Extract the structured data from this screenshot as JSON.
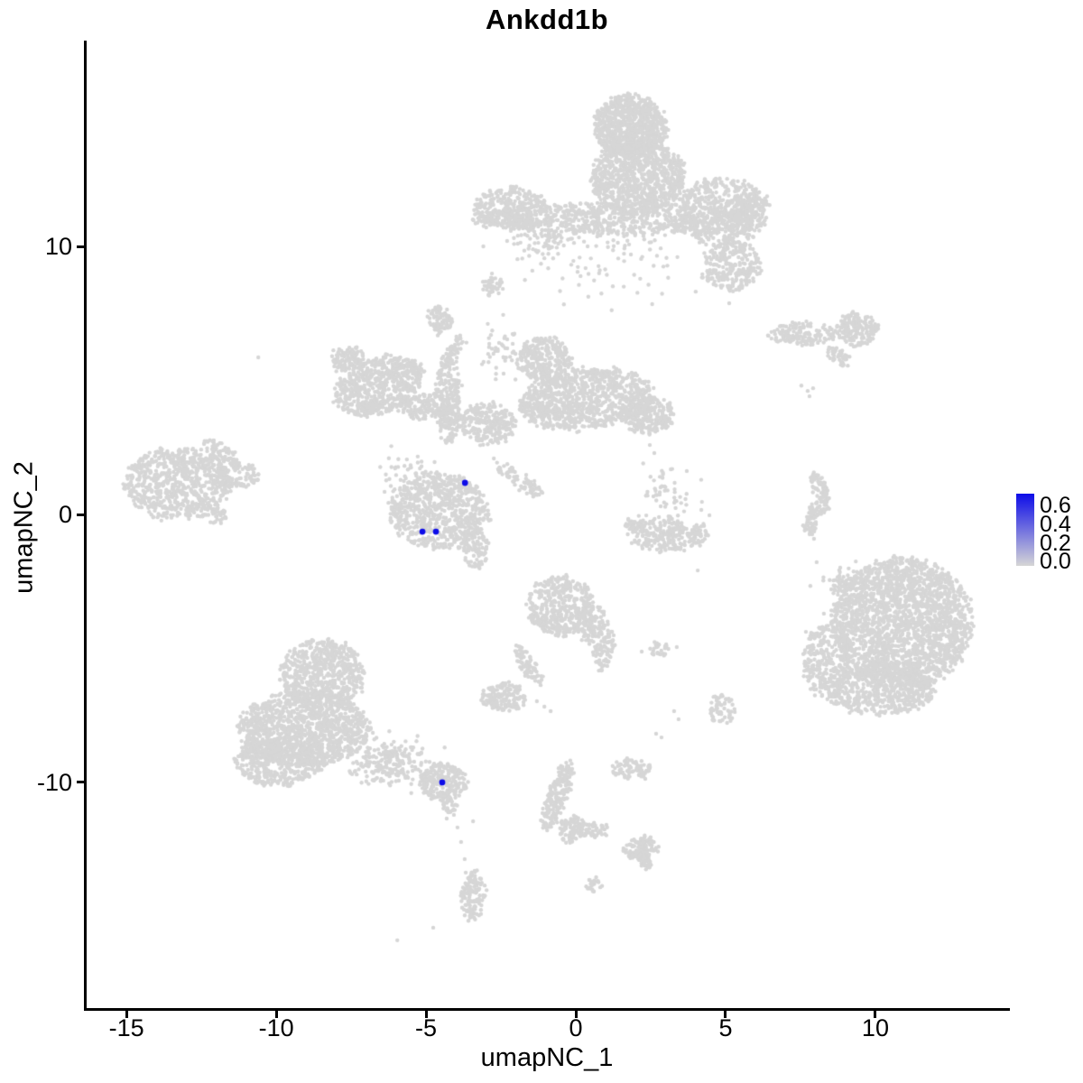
{
  "title": "Ankdd1b",
  "chart_data": {
    "type": "scatter",
    "title": "Ankdd1b",
    "xlabel": "umapNC_1",
    "ylabel": "umapNC_2",
    "xlim": [
      -16.36,
      14.46
    ],
    "ylim": [
      -18.42,
      17.58
    ],
    "x_ticks": [
      -15,
      -10,
      -5,
      0,
      5,
      10
    ],
    "y_ticks": [
      -10,
      0,
      10
    ],
    "grid": false,
    "legend": {
      "position": "right",
      "tick_values": [
        0.0,
        0.2,
        0.4,
        0.6
      ],
      "tick_labels": [
        "0.0",
        "0.2",
        "0.4",
        "0.6"
      ],
      "scale_min": -0.045,
      "scale_max": 0.73,
      "low_color": "#D6D6D6",
      "high_color": "#0D0CE8"
    },
    "background_cells": {
      "color": "#D6D6D6",
      "radius_px": 2.2,
      "blobs": [
        [
          1.81,
          14.48,
          1.2,
          1.18,
          0,
          900,
          "u"
        ],
        [
          2.08,
          12.56,
          1.57,
          1.41,
          0,
          1000,
          "u"
        ],
        [
          1.42,
          11.01,
          4.82,
          0.61,
          0,
          800,
          "u"
        ],
        [
          -2.2,
          11.45,
          1.2,
          0.74,
          0,
          260,
          "u"
        ],
        [
          4.88,
          11.28,
          1.45,
          1.28,
          0,
          520,
          "u"
        ],
        [
          5.87,
          11.62,
          0.54,
          0.47,
          0,
          70,
          "u"
        ],
        [
          5.18,
          9.26,
          0.96,
          0.94,
          0,
          260,
          "u"
        ],
        [
          1.27,
          9.43,
          2.71,
          1.35,
          0,
          90,
          "g"
        ],
        [
          -1.14,
          10.27,
          1.36,
          0.61,
          0,
          70,
          "g"
        ],
        [
          -2.77,
          8.52,
          0.3,
          0.37,
          -30,
          40,
          "u"
        ],
        [
          7.59,
          6.73,
          1.14,
          0.4,
          0,
          160,
          "u"
        ],
        [
          9.4,
          6.9,
          0.69,
          0.61,
          0,
          170,
          "u"
        ],
        [
          8.8,
          5.89,
          0.45,
          0.24,
          -35,
          40,
          "u"
        ],
        [
          -6.57,
          4.78,
          1.57,
          1.01,
          25,
          650,
          "u"
        ],
        [
          -7.62,
          5.79,
          0.54,
          0.44,
          0,
          110,
          "u"
        ],
        [
          -5.06,
          4.04,
          0.9,
          0.47,
          0,
          160,
          "u"
        ],
        [
          -4.25,
          4.38,
          0.42,
          1.68,
          0,
          260,
          "u"
        ],
        [
          -4.52,
          7.27,
          0.39,
          0.51,
          0,
          90,
          "u"
        ],
        [
          -4.07,
          6.13,
          0.18,
          0.61,
          -20,
          40,
          "u"
        ],
        [
          -2.95,
          3.37,
          0.96,
          0.74,
          0,
          260,
          "u"
        ],
        [
          -1.08,
          5.79,
          0.9,
          0.81,
          0,
          300,
          "u"
        ],
        [
          0.36,
          4.31,
          2.26,
          1.11,
          8,
          950,
          "u"
        ],
        [
          2.41,
          3.7,
          0.84,
          0.67,
          0,
          220,
          "u"
        ],
        [
          -1.9,
          1.31,
          1.05,
          0.24,
          -40,
          80,
          "u"
        ],
        [
          -2.35,
          6.06,
          0.9,
          0.84,
          0,
          50,
          "g"
        ],
        [
          -4.55,
          0.1,
          1.66,
          1.41,
          0,
          750,
          "u"
        ],
        [
          -3.34,
          -1.35,
          0.48,
          0.61,
          0,
          80,
          "u"
        ],
        [
          -5.36,
          1.35,
          1.05,
          0.94,
          0,
          70,
          "g"
        ],
        [
          -13.31,
          1.14,
          1.75,
          1.35,
          0,
          700,
          "u"
        ],
        [
          -11.33,
          1.45,
          0.84,
          0.4,
          0,
          110,
          "u"
        ],
        [
          -11.78,
          2.26,
          0.75,
          0.3,
          -38,
          80,
          "u"
        ],
        [
          -11.99,
          -0.03,
          0.36,
          0.27,
          0,
          30,
          "u"
        ],
        [
          8.13,
          1.01,
          0.24,
          0.54,
          15,
          60,
          "u"
        ],
        [
          7.86,
          -0.17,
          0.21,
          0.67,
          -8,
          60,
          "u"
        ],
        [
          8.31,
          0.34,
          0.18,
          0.34,
          0,
          30,
          "u"
        ],
        [
          10.9,
          -4.04,
          2.35,
          2.42,
          0,
          2300,
          "u"
        ],
        [
          8.4,
          -5.49,
          0.84,
          1.35,
          0,
          320,
          "u"
        ],
        [
          10.15,
          -6.57,
          1.81,
          0.88,
          0,
          520,
          "u"
        ],
        [
          8.95,
          -2.53,
          0.66,
          0.61,
          0,
          60,
          "g"
        ],
        [
          -0.48,
          -3.43,
          1.14,
          1.08,
          0,
          430,
          "u"
        ],
        [
          0.51,
          -4.04,
          0.54,
          0.74,
          0,
          130,
          "u"
        ],
        [
          0.96,
          -5.05,
          0.3,
          0.81,
          -15,
          80,
          "u"
        ],
        [
          -1.6,
          -5.66,
          0.27,
          0.94,
          25,
          80,
          "u"
        ],
        [
          -2.41,
          -6.8,
          0.78,
          0.51,
          0,
          150,
          "u"
        ],
        [
          2.77,
          -5.05,
          0.39,
          0.24,
          0,
          30,
          "u"
        ],
        [
          3.13,
          -0.77,
          1.39,
          0.57,
          0,
          240,
          "u"
        ],
        [
          1.96,
          -0.34,
          0.3,
          0.3,
          0,
          40,
          "u"
        ],
        [
          3.07,
          0.71,
          0.78,
          1.01,
          0,
          55,
          "g"
        ],
        [
          -8.46,
          -5.99,
          1.39,
          1.35,
          0,
          650,
          "u"
        ],
        [
          -9.07,
          -8.01,
          2.17,
          1.41,
          0,
          1200,
          "u"
        ],
        [
          -9.88,
          -9.26,
          1.51,
          0.88,
          0,
          450,
          "u"
        ],
        [
          -6.2,
          -9.26,
          1.27,
          0.74,
          0,
          240,
          "g"
        ],
        [
          -4.46,
          -9.97,
          0.81,
          0.67,
          0,
          240,
          "u"
        ],
        [
          -4.25,
          -10.77,
          0.24,
          0.37,
          0,
          40,
          "u"
        ],
        [
          -3.43,
          -14.24,
          0.39,
          0.94,
          0,
          130,
          "u"
        ],
        [
          -0.6,
          -10.51,
          0.3,
          1.35,
          -18,
          200,
          "u"
        ],
        [
          -0.15,
          -11.78,
          0.42,
          0.47,
          0,
          90,
          "u"
        ],
        [
          0.51,
          -11.78,
          0.54,
          0.27,
          0,
          60,
          "u"
        ],
        [
          2.17,
          -12.49,
          0.54,
          0.44,
          0,
          120,
          "u"
        ],
        [
          2.35,
          -13.0,
          0.18,
          0.27,
          0,
          30,
          "u"
        ],
        [
          1.87,
          -9.49,
          0.66,
          0.37,
          0,
          80,
          "u"
        ],
        [
          0.63,
          -13.84,
          0.24,
          0.24,
          0,
          25,
          "u"
        ],
        [
          4.88,
          -7.24,
          0.42,
          0.57,
          0,
          60,
          "u"
        ]
      ],
      "singles": [
        [
          -10.6,
          5.86
        ],
        [
          5.12,
          7.88
        ],
        [
          -2.8,
          8.99
        ],
        [
          7.53,
          4.81
        ],
        [
          7.74,
          4.61
        ],
        [
          7.92,
          4.71
        ],
        [
          7.8,
          4.41
        ],
        [
          8.49,
          5.83
        ],
        [
          2.47,
          2.59
        ],
        [
          2.62,
          2.29
        ],
        [
          4.19,
          0.17
        ],
        [
          4.46,
          -0.03
        ],
        [
          7.95,
          -0.91
        ],
        [
          7.89,
          -0.74
        ],
        [
          8.04,
          -1.78
        ],
        [
          8.8,
          -2.29
        ],
        [
          8.64,
          -2.79
        ],
        [
          8.28,
          -3.7
        ],
        [
          7.68,
          -4.38
        ],
        [
          4.07,
          -2.09
        ],
        [
          2.2,
          -5.12
        ],
        [
          3.37,
          -4.95
        ],
        [
          3.28,
          -7.34
        ],
        [
          3.43,
          -7.64
        ],
        [
          2.68,
          -8.18
        ],
        [
          2.86,
          -8.32
        ],
        [
          -1.3,
          -6.97
        ],
        [
          -1.05,
          -7.17
        ],
        [
          -0.84,
          -7.34
        ],
        [
          -0.75,
          -11.52
        ],
        [
          -3.43,
          -11.45
        ],
        [
          -4.31,
          -11.35
        ],
        [
          -4.07,
          -11.21
        ],
        [
          -3.95,
          -11.68
        ],
        [
          -3.83,
          -12.22
        ],
        [
          -3.71,
          -12.86
        ],
        [
          -4.76,
          -15.42
        ],
        [
          -5.96,
          -15.89
        ]
      ]
    },
    "highlight_cells": {
      "color": "#0D0CE8",
      "radius_px": 3.4,
      "points": [
        {
          "x": -3.7,
          "y": 1.18,
          "value": 0.7
        },
        {
          "x": -5.12,
          "y": -0.64,
          "value": 0.7
        },
        {
          "x": -4.67,
          "y": -0.64,
          "value": 0.7
        },
        {
          "x": -4.46,
          "y": -10.0,
          "value": 0.7
        }
      ]
    }
  }
}
